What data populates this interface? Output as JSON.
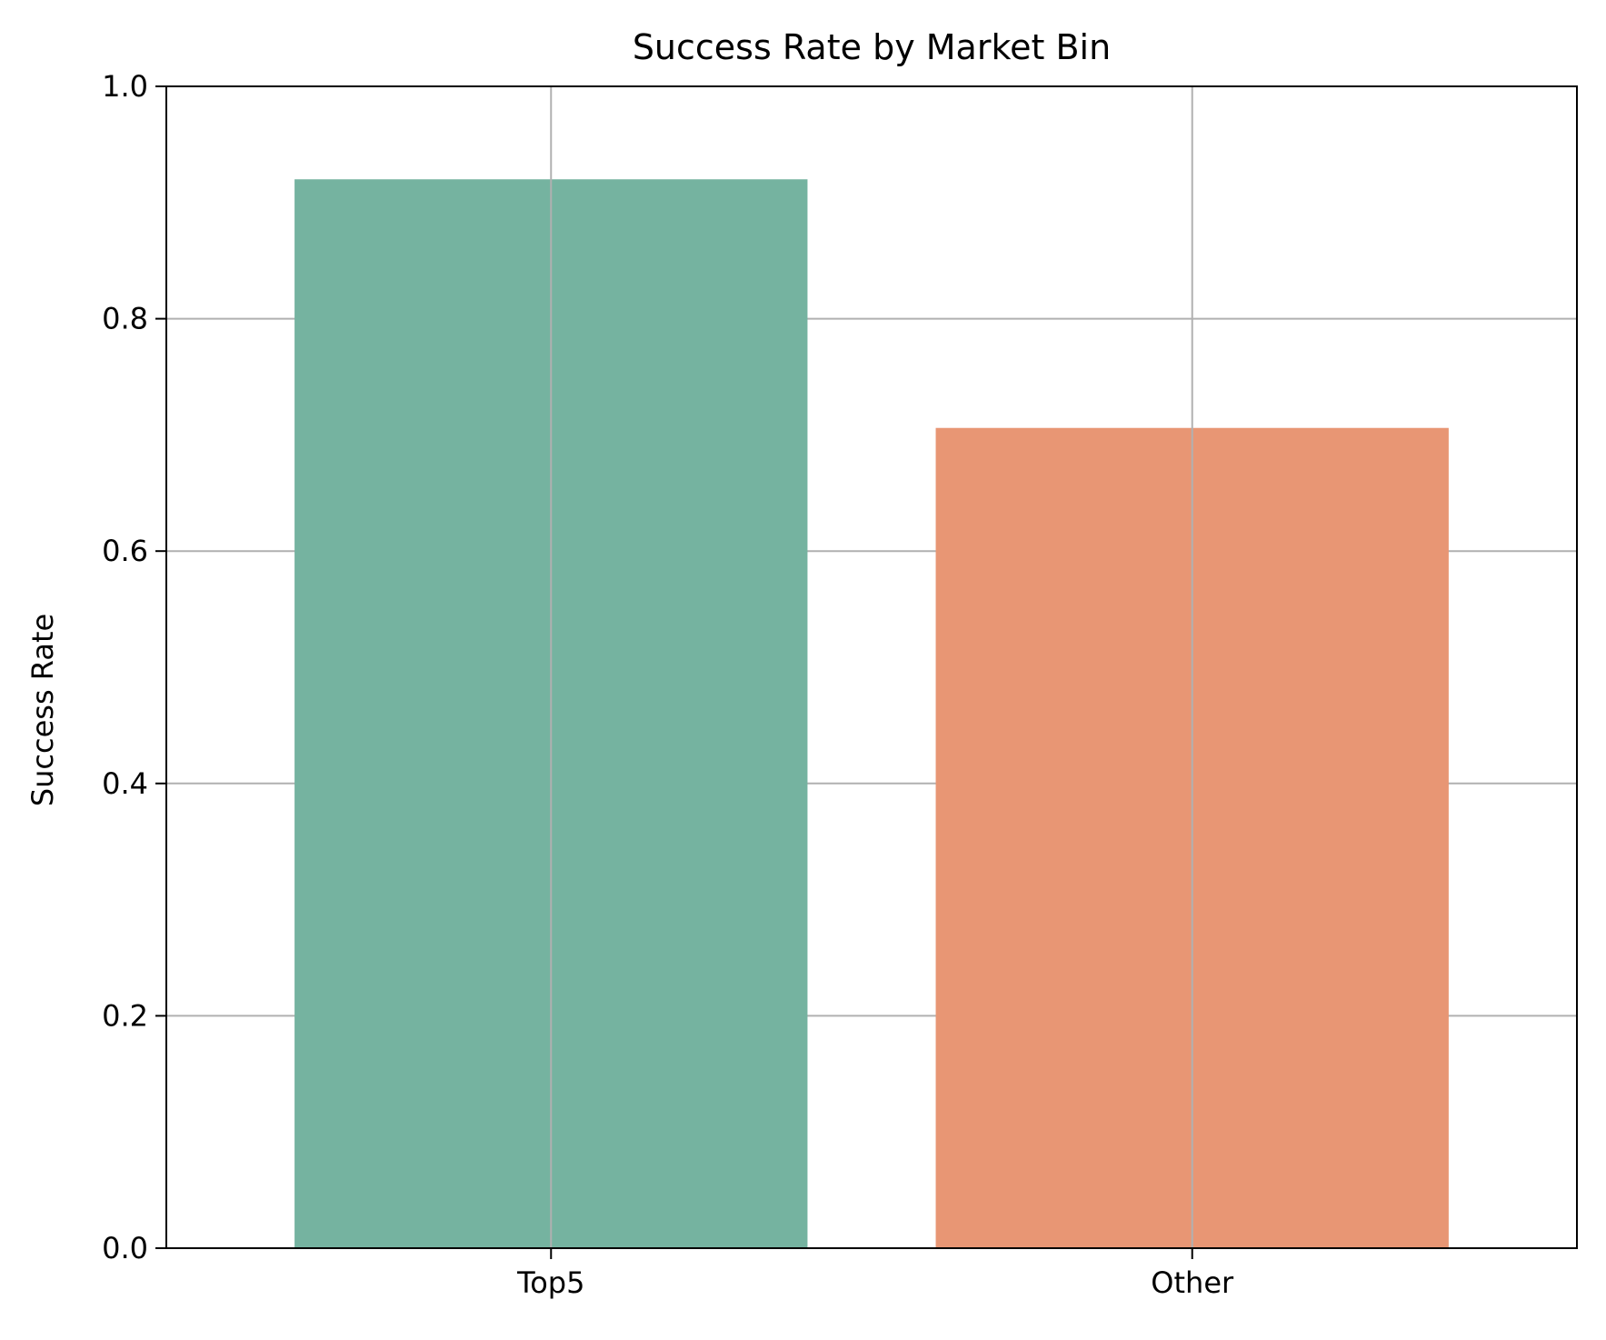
{
  "chart_data": {
    "type": "bar",
    "title": "Success Rate by Market Bin",
    "xlabel": "",
    "ylabel": "Success Rate",
    "categories": [
      "Top5",
      "Other"
    ],
    "values": [
      0.92,
      0.706
    ],
    "colors": [
      "#75b3a0",
      "#e89674"
    ],
    "ylim": [
      0,
      1.0
    ],
    "yticks": [
      0.0,
      0.2,
      0.4,
      0.6,
      0.8,
      1.0
    ],
    "ytick_labels": [
      "0.0",
      "0.2",
      "0.4",
      "0.6",
      "0.8",
      "1.0"
    ],
    "grid": true,
    "grid_color": "#b0b0b0",
    "legend": "none"
  }
}
